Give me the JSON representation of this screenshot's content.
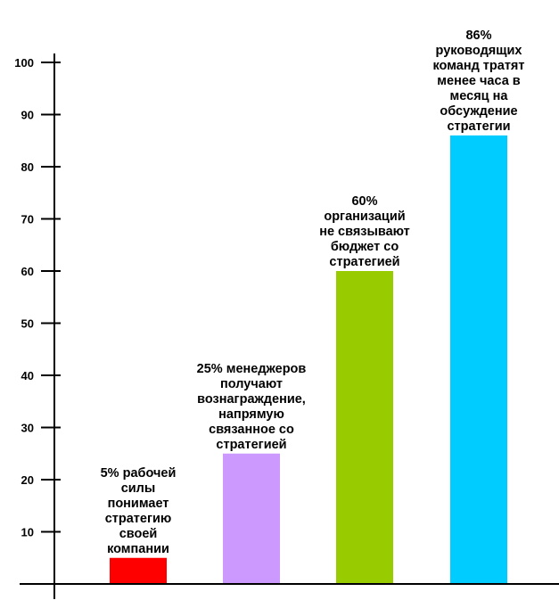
{
  "chart_data": {
    "type": "bar",
    "title": "",
    "xlabel": "",
    "ylabel": "",
    "ylim": [
      0,
      100
    ],
    "yticks": [
      10,
      20,
      30,
      40,
      50,
      60,
      70,
      80,
      90,
      100
    ],
    "grid": false,
    "legend": "none",
    "categories": [
      "5% рабочей силы понимает стратегию своей компании",
      "25% менеджеров получают вознаграждение, напрямую связанное со стратегией",
      "60% организаций не связывают бюджет со стратегией",
      "86% руководящих команд тратят менее часа в месяц на обсуждение стратегии"
    ],
    "values": [
      5,
      25,
      60,
      86
    ],
    "colors": [
      "#ff0000",
      "#cc99ff",
      "#99cc00",
      "#00ccff"
    ],
    "annotations": [
      [
        "5% рабочей",
        "силы",
        "понимает",
        "стратегию",
        "своей",
        "компании"
      ],
      [
        "25% менеджеров",
        "получают",
        "вознаграждение,",
        "напрямую",
        "связанное со",
        "стратегией"
      ],
      [
        "60%",
        "организаций",
        "не связывают",
        "бюджет со",
        "стратегией"
      ],
      [
        "86%",
        "руководящих",
        "команд тратят",
        "менее часа в",
        "месяц на",
        "обсуждение",
        "стратегии"
      ]
    ]
  }
}
